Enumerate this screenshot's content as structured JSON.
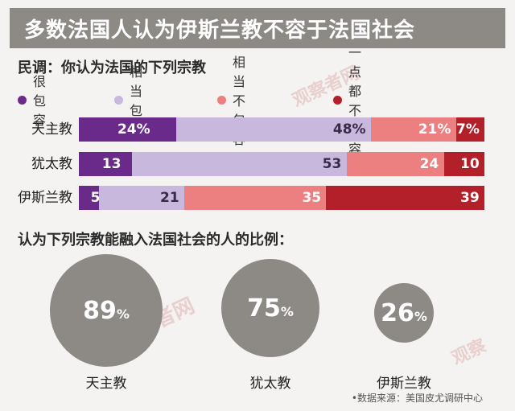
{
  "title": "多数法国人认为伊斯兰教不容于法国社会",
  "survey_title": "民调：你认为法国的下列宗教",
  "legend": [
    {
      "label": "很包容",
      "color": "#6a2a8a"
    },
    {
      "label": "相当包容",
      "color": "#c9b8dd"
    },
    {
      "label": "相当不包容",
      "color": "#ec7f7f"
    },
    {
      "label": "一点都不包容",
      "color": "#b3202a"
    }
  ],
  "question2": "认为下列宗教能融入法国社会的人的比例：",
  "source": "•数据来源：美国皮尤调研中心",
  "watermarks": [
    "观察者网",
    "观察者网",
    "观察"
  ],
  "chart_data": [
    {
      "type": "bar",
      "title": "民调：你认为法国的下列宗教",
      "orientation": "horizontal",
      "stacked": true,
      "categories": [
        "天主教",
        "犹太教",
        "伊斯兰教"
      ],
      "series": [
        {
          "name": "很包容",
          "values": [
            24,
            13,
            5
          ],
          "labels": [
            "24%",
            "13",
            "5"
          ],
          "color": "#6a2a8a"
        },
        {
          "name": "相当包容",
          "values": [
            48,
            53,
            21
          ],
          "labels": [
            "48%",
            "53",
            "21"
          ],
          "color": "#c9b8dd"
        },
        {
          "name": "相当不包容",
          "values": [
            21,
            24,
            35
          ],
          "labels": [
            "21%",
            "24",
            "35"
          ],
          "color": "#ec7f7f"
        },
        {
          "name": "一点都不包容",
          "values": [
            7,
            10,
            39
          ],
          "labels": [
            "7%",
            "10",
            "39"
          ],
          "color": "#b3202a"
        }
      ],
      "legend_position": "top-left"
    },
    {
      "type": "bubble",
      "title": "认为下列宗教能融入法国社会的人的比例：",
      "categories": [
        "天主教",
        "犹太教",
        "伊斯兰教"
      ],
      "values": [
        89,
        75,
        26
      ],
      "value_text": [
        "89",
        "75",
        "26"
      ],
      "unit": "%"
    }
  ]
}
